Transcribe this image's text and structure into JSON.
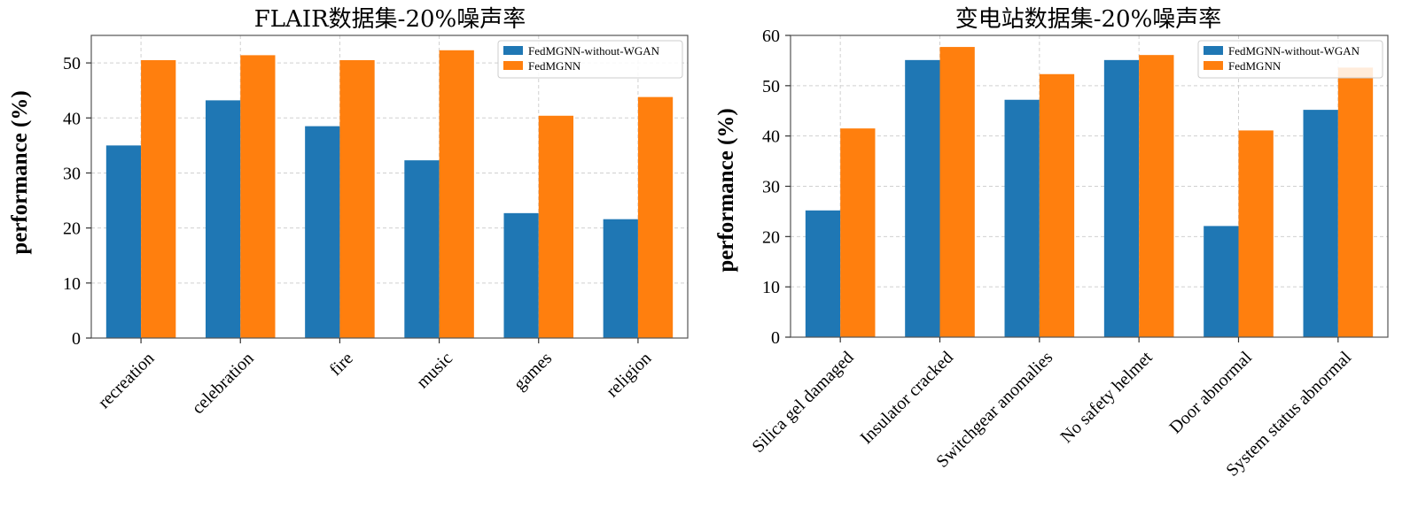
{
  "chart_data": [
    {
      "type": "bar",
      "title": "FLAIR数据集-20%噪声率",
      "xlabel": "",
      "ylabel": "performance (%)",
      "ylim": [
        0,
        55
      ],
      "yticks": [
        0,
        10,
        20,
        30,
        40,
        50
      ],
      "grid": true,
      "legend_position": "top-right",
      "categories": [
        "recreation",
        "celebration",
        "fire",
        "music",
        "games",
        "religion"
      ],
      "series": [
        {
          "name": "FedMGNN-without-WGAN",
          "color": "#1f77b4",
          "values": [
            35,
            43.2,
            38.5,
            32.3,
            22.7,
            21.6
          ]
        },
        {
          "name": "FedMGNN",
          "color": "#ff7f0e",
          "values": [
            50.5,
            51.4,
            50.5,
            52.3,
            40.4,
            43.8
          ]
        }
      ]
    },
    {
      "type": "bar",
      "title": "变电站数据集-20%噪声率",
      "xlabel": "",
      "ylabel": "performance (%)",
      "ylim": [
        0,
        60
      ],
      "yticks": [
        0,
        10,
        20,
        30,
        40,
        50,
        60
      ],
      "grid": true,
      "legend_position": "top-right",
      "categories": [
        "Silica gel damaged",
        "Insulator cracked",
        "Switchgear anomalies",
        "No safety helmet",
        "Door abnormal",
        "System status abnormal"
      ],
      "series": [
        {
          "name": "FedMGNN-without-WGAN",
          "color": "#1f77b4",
          "values": [
            25.2,
            55.1,
            47.2,
            55.1,
            22.1,
            45.2
          ]
        },
        {
          "name": "FedMGNN",
          "color": "#ff7f0e",
          "values": [
            41.5,
            57.7,
            52.3,
            56.1,
            41.1,
            53.6
          ]
        }
      ]
    }
  ]
}
